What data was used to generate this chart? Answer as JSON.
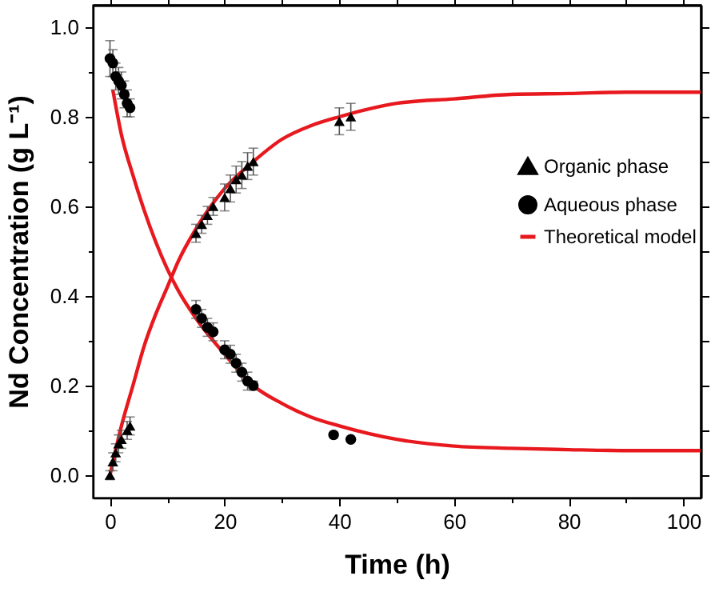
{
  "chart_data": {
    "type": "scatter",
    "xlabel": "Time (h)",
    "ylabel": "Nd Concentration (g L⁻¹)",
    "xlim": [
      -3,
      103
    ],
    "ylim": [
      -0.05,
      1.05
    ],
    "xticks": [
      0,
      {
        "value": 10,
        "label": null
      },
      20,
      {
        "value": 30,
        "label": null
      },
      40,
      {
        "value": 50,
        "label": null
      },
      60,
      {
        "value": 70,
        "label": null
      },
      80,
      {
        "value": 90,
        "label": null
      },
      100
    ],
    "yticks": [
      {
        "value": 0,
        "label": "0.0"
      },
      {
        "value": 0.1,
        "label": null
      },
      {
        "value": 0.2,
        "label": "0.2"
      },
      {
        "value": 0.3,
        "label": null
      },
      {
        "value": 0.4,
        "label": "0.4"
      },
      {
        "value": 0.5,
        "label": null
      },
      {
        "value": 0.6,
        "label": "0.6"
      },
      {
        "value": 0.7,
        "label": null
      },
      {
        "value": 0.8,
        "label": "0.8"
      },
      {
        "value": 0.9,
        "label": null
      },
      {
        "value": 1,
        "label": "1.0"
      }
    ],
    "grid": false,
    "legend": "top right",
    "series": [
      {
        "name": "Organic phase",
        "marker": "triangle",
        "color": "#000000",
        "x": [
          0,
          0.5,
          1,
          1.5,
          2,
          3,
          3.5,
          15,
          16,
          17,
          18,
          20,
          21,
          22,
          23,
          24,
          25,
          40,
          42
        ],
        "values": [
          0,
          0.03,
          0.05,
          0.07,
          0.08,
          0.1,
          0.11,
          0.54,
          0.56,
          0.58,
          0.6,
          0.62,
          0.64,
          0.66,
          0.67,
          0.69,
          0.7,
          0.79,
          0.8
        ],
        "errors": [
          0.01,
          0.02,
          0.02,
          0.02,
          0.02,
          0.02,
          0.02,
          0.02,
          0.02,
          0.02,
          0.02,
          0.03,
          0.03,
          0.03,
          0.03,
          0.03,
          0.03,
          0.03,
          0.03
        ]
      },
      {
        "name": "Aqueous phase",
        "marker": "circle",
        "color": "#000000",
        "x": [
          0,
          0.5,
          1,
          1.5,
          2,
          2.5,
          3,
          3.5,
          15,
          16,
          17,
          18,
          20,
          21,
          22,
          23,
          24,
          25,
          39,
          42
        ],
        "values": [
          0.93,
          0.92,
          0.89,
          0.88,
          0.87,
          0.85,
          0.83,
          0.82,
          0.37,
          0.35,
          0.33,
          0.32,
          0.28,
          0.27,
          0.25,
          0.23,
          0.21,
          0.2,
          0.09,
          0.08
        ],
        "errors": [
          0.04,
          0.03,
          0.03,
          0.03,
          0.03,
          0.03,
          0.03,
          0.02,
          0.02,
          0.02,
          0.02,
          0.02,
          0.02,
          0.02,
          0.02,
          0.02,
          0.02,
          0.01,
          null,
          null
        ]
      },
      {
        "name": "Theoretical model",
        "type": "line",
        "color": "#e8191e",
        "x": [
          0,
          2,
          4,
          6,
          8,
          10,
          12,
          15,
          20,
          25,
          30,
          35,
          40,
          50,
          60,
          70,
          80,
          90,
          103
        ],
        "values": [
          0,
          0.11,
          0.2,
          0.29,
          0.36,
          0.42,
          0.48,
          0.55,
          0.64,
          0.7,
          0.75,
          0.78,
          0.8,
          0.83,
          0.84,
          0.85,
          0.852,
          0.855,
          0.855
        ]
      },
      {
        "type": "line",
        "color": "#e8191e",
        "x": [
          0.5,
          2,
          4,
          6,
          8,
          10,
          12,
          15,
          20,
          25,
          30,
          35,
          40,
          50,
          60,
          70,
          80,
          90,
          103
        ],
        "values": [
          0.86,
          0.76,
          0.67,
          0.59,
          0.52,
          0.46,
          0.41,
          0.35,
          0.27,
          0.2,
          0.16,
          0.13,
          0.11,
          0.08,
          0.065,
          0.06,
          0.057,
          0.055,
          0.055
        ]
      }
    ]
  }
}
